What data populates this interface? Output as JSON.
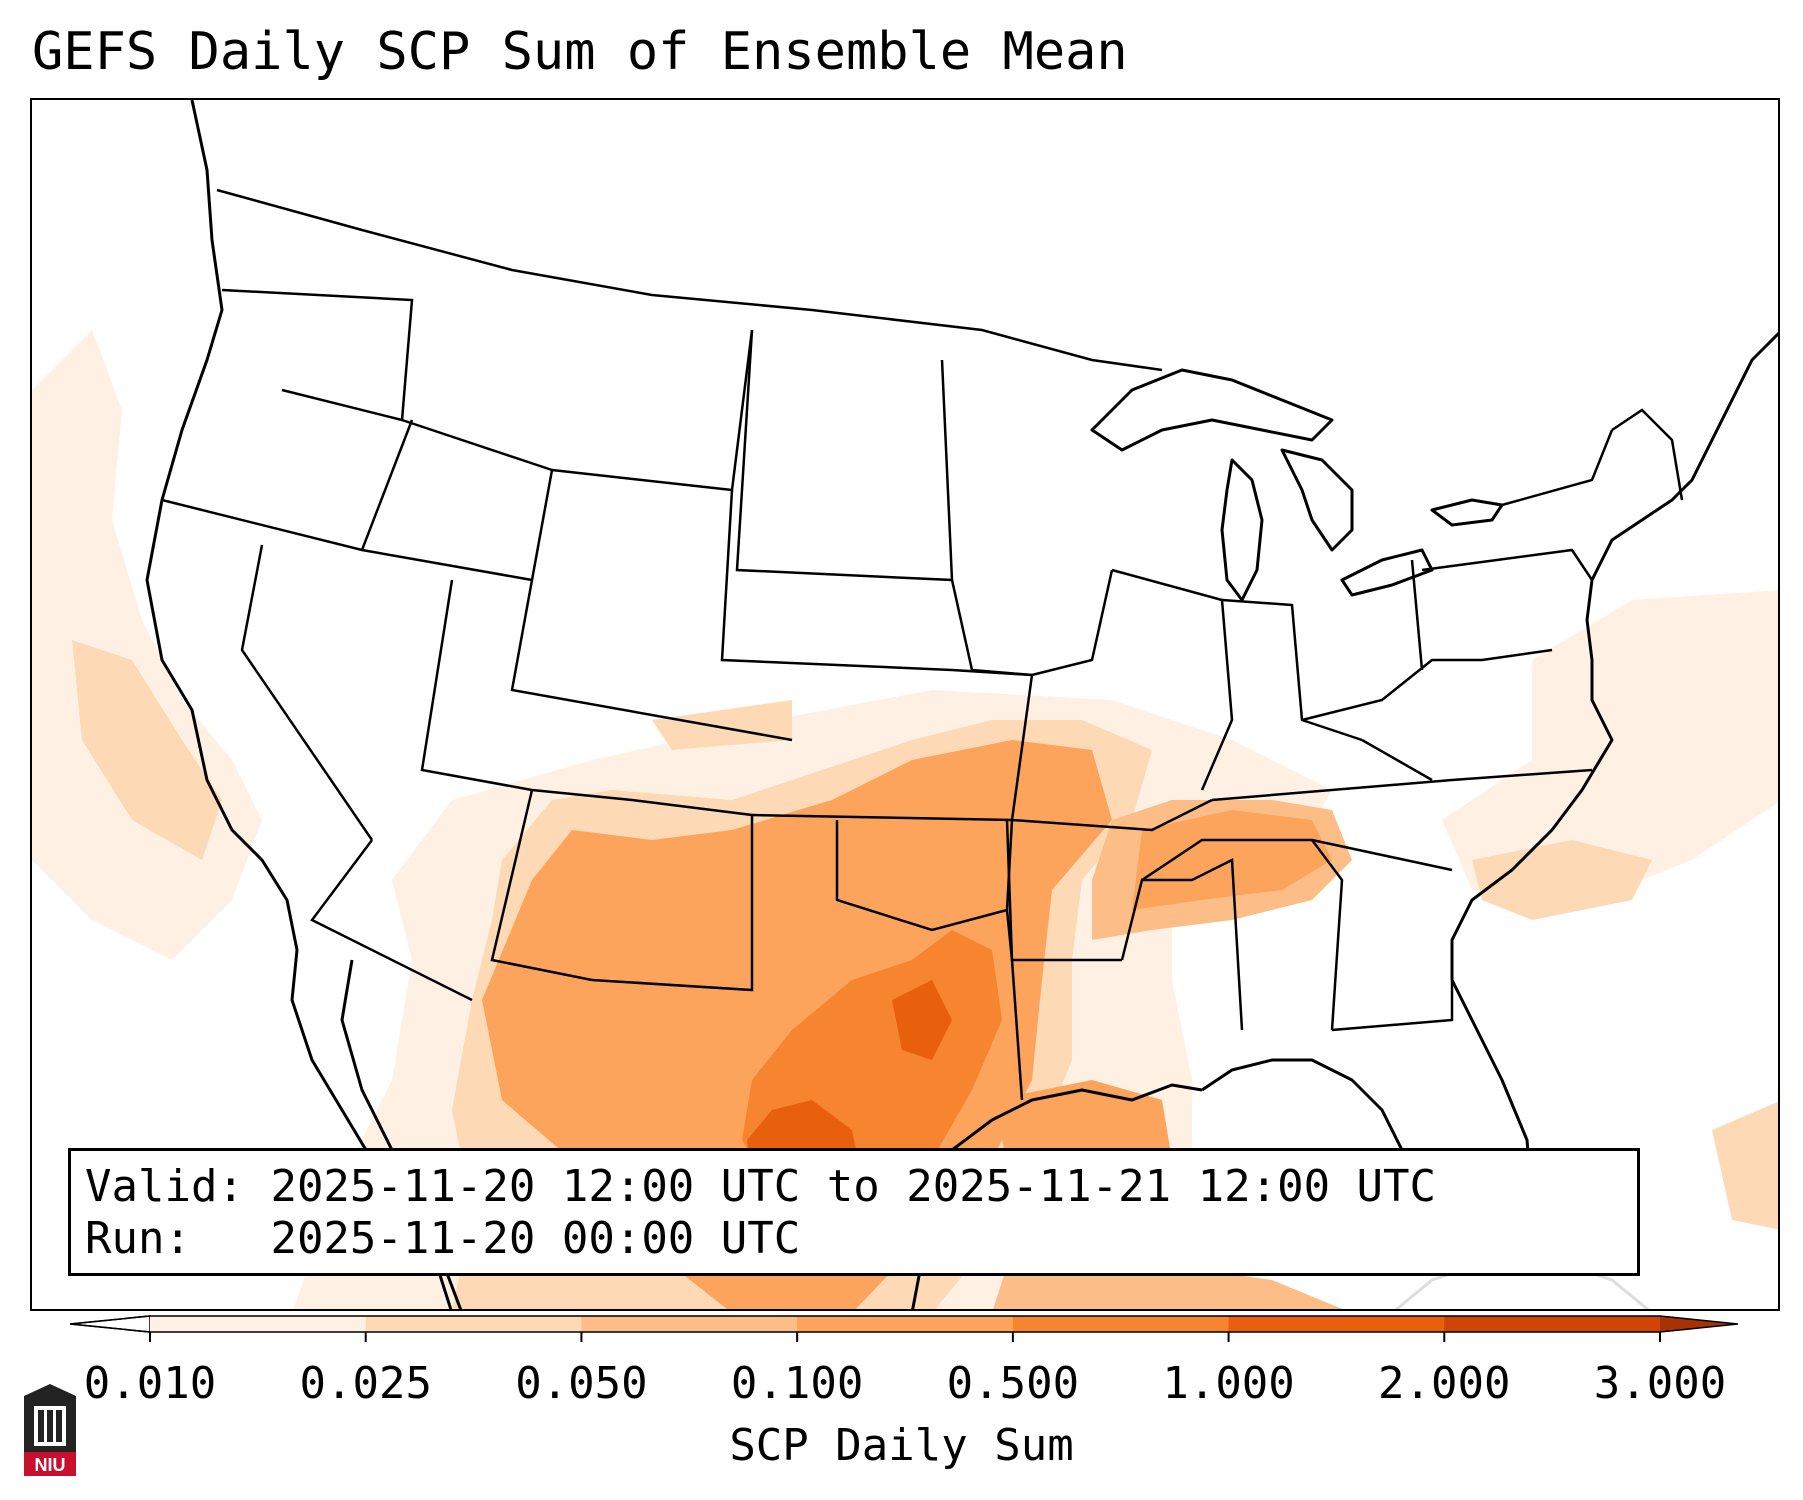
{
  "title": "GEFS Daily SCP Sum of Ensemble Mean",
  "info": {
    "valid_label": "Valid:",
    "valid_value": "2025-11-20 12:00 UTC to 2025-11-21 12:00 UTC",
    "run_label": "Run:",
    "run_value": "2025-11-20 00:00 UTC"
  },
  "colorbar": {
    "label": "SCP Daily Sum",
    "ticks": [
      "0.010",
      "0.025",
      "0.050",
      "0.100",
      "0.500",
      "1.000",
      "2.000",
      "3.000"
    ],
    "colors": [
      "#fef0e3",
      "#fdd9b6",
      "#fdbd86",
      "#fda45c",
      "#f7842e",
      "#e8600e",
      "#cf4503",
      "#a83302"
    ]
  },
  "logo": {
    "text": "NIU",
    "color": "#c8102e"
  },
  "map": {
    "projection": "Lambert Conformal CONUS",
    "scp_regions": [
      {
        "name": "texas-core",
        "level": 4
      },
      {
        "name": "south-texas-max",
        "level": 5
      },
      {
        "name": "southern-plains",
        "level": 3
      },
      {
        "name": "tennessee-valley",
        "level": 3
      },
      {
        "name": "pacific-coast",
        "level": 1
      },
      {
        "name": "western-atlantic",
        "level": 1
      }
    ]
  }
}
